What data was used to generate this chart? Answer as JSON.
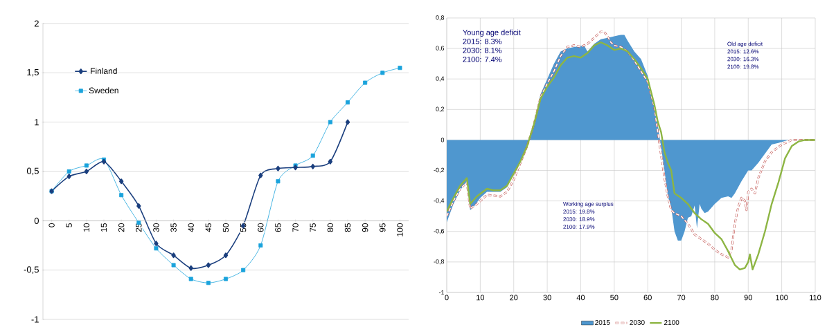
{
  "chart_data": [
    {
      "type": "line",
      "categories": [
        "0",
        "5",
        "10",
        "15",
        "20",
        "25",
        "30",
        "35",
        "40",
        "45",
        "50",
        "55",
        "60",
        "65",
        "70",
        "75",
        "80",
        "85",
        "90",
        "95",
        "100"
      ],
      "series": [
        {
          "name": "Finland",
          "color": "#1b3f7e",
          "marker": "diamond",
          "values": [
            0.3,
            0.45,
            0.5,
            0.6,
            0.4,
            0.15,
            -0.23,
            -0.35,
            -0.48,
            -0.45,
            -0.35,
            -0.05,
            0.46,
            0.53,
            0.54,
            0.55,
            0.6,
            1.0,
            null,
            null,
            null
          ]
        },
        {
          "name": "Sweden",
          "color": "#1aa3dc",
          "marker": "square",
          "values": [
            0.3,
            0.5,
            0.56,
            0.62,
            0.26,
            -0.02,
            -0.28,
            -0.45,
            -0.59,
            -0.63,
            -0.59,
            -0.5,
            -0.25,
            0.4,
            0.56,
            0.66,
            1.0,
            1.2,
            1.4,
            1.5,
            1.55
          ]
        }
      ],
      "ylim": [
        -1,
        2
      ],
      "yticks": [
        -1,
        {
          "value": -0.5,
          "label": "-0,5"
        },
        0,
        {
          "value": 0.5,
          "label": "0,5"
        },
        1,
        {
          "value": 1.5,
          "label": "1,5"
        },
        2
      ],
      "grid": "y",
      "legend": "top left"
    },
    {
      "type": "line",
      "series": [
        {
          "name": "2015",
          "type": "area",
          "color": "#4f97cf",
          "x": [
            0,
            2,
            4,
            6,
            7,
            8,
            10,
            12,
            16,
            18,
            20,
            22,
            24,
            25,
            26,
            28,
            30,
            32,
            34,
            36,
            38,
            41,
            42,
            44,
            46,
            48,
            50,
            52,
            53,
            54,
            56,
            58,
            60,
            62,
            63,
            64,
            65,
            66,
            67,
            68,
            69,
            70,
            71,
            72,
            73,
            74,
            74.7,
            75.5,
            76,
            77,
            78,
            80,
            82,
            84,
            85,
            86,
            88,
            90,
            91,
            93,
            95,
            97,
            99,
            102,
            110
          ],
          "values": [
            -0.54,
            -0.42,
            -0.33,
            -0.27,
            -0.46,
            -0.44,
            -0.38,
            -0.34,
            -0.34,
            -0.31,
            -0.22,
            -0.14,
            -0.03,
            0.02,
            0.1,
            0.3,
            0.4,
            0.5,
            0.58,
            0.6,
            0.61,
            0.62,
            0.58,
            0.63,
            0.66,
            0.67,
            0.68,
            0.69,
            0.69,
            0.65,
            0.58,
            0.53,
            0.42,
            0.22,
            0.1,
            -0.05,
            -0.2,
            -0.37,
            -0.44,
            -0.6,
            -0.66,
            -0.66,
            -0.6,
            -0.51,
            -0.5,
            -0.43,
            -0.58,
            -0.42,
            -0.45,
            -0.48,
            -0.47,
            -0.42,
            -0.38,
            -0.37,
            -0.38,
            -0.35,
            -0.27,
            -0.2,
            -0.2,
            -0.15,
            -0.09,
            -0.03,
            -0.02,
            0,
            0
          ]
        },
        {
          "name": "2030",
          "color": "#c0504d",
          "line_style": "dashed",
          "x": [
            0,
            2,
            4,
            6,
            7,
            9,
            12,
            16,
            18,
            20,
            22,
            24,
            26,
            28,
            30,
            32,
            34,
            36,
            38,
            40,
            42,
            44,
            46,
            47,
            48,
            49,
            50,
            52,
            54,
            56,
            58,
            60,
            62,
            63,
            64,
            65,
            66,
            67,
            68,
            70,
            72,
            74,
            76,
            78,
            80,
            82,
            84,
            85,
            86,
            87,
            88,
            89,
            89.5,
            90,
            91,
            92,
            93,
            95,
            97,
            100,
            103,
            110
          ],
          "values": [
            -0.5,
            -0.4,
            -0.32,
            -0.28,
            -0.45,
            -0.42,
            -0.36,
            -0.37,
            -0.34,
            -0.26,
            -0.15,
            -0.04,
            0.1,
            0.28,
            0.37,
            0.45,
            0.55,
            0.61,
            0.62,
            0.61,
            0.63,
            0.67,
            0.71,
            0.71,
            0.68,
            0.64,
            0.62,
            0.61,
            0.58,
            0.52,
            0.45,
            0.38,
            0.21,
            0.05,
            -0.1,
            -0.25,
            -0.37,
            -0.46,
            -0.48,
            -0.5,
            -0.55,
            -0.62,
            -0.65,
            -0.68,
            -0.72,
            -0.75,
            -0.77,
            -0.72,
            -0.55,
            -0.44,
            -0.38,
            -0.4,
            -0.46,
            -0.34,
            -0.32,
            -0.35,
            -0.25,
            -0.14,
            -0.08,
            -0.03,
            0,
            0
          ]
        },
        {
          "name": "2100",
          "color": "#8db543",
          "line_style": "solid",
          "x": [
            0,
            2,
            4,
            6,
            7,
            9,
            12,
            14,
            16,
            18,
            20,
            22,
            24,
            26,
            28,
            30,
            32,
            34,
            36,
            38,
            40,
            42,
            44,
            46,
            48,
            50,
            52,
            54,
            56,
            58,
            60,
            62,
            63,
            64,
            65,
            66,
            67,
            68,
            70,
            72,
            74,
            76,
            78,
            80,
            82,
            84,
            86,
            87.5,
            89,
            90,
            90.5,
            91.3,
            93,
            95,
            97,
            99,
            101,
            103,
            105,
            107,
            110
          ],
          "values": [
            -0.47,
            -0.38,
            -0.3,
            -0.25,
            -0.42,
            -0.37,
            -0.32,
            -0.33,
            -0.33,
            -0.3,
            -0.22,
            -0.14,
            -0.04,
            0.1,
            0.27,
            0.35,
            0.41,
            0.49,
            0.54,
            0.55,
            0.54,
            0.57,
            0.62,
            0.64,
            0.62,
            0.59,
            0.6,
            0.58,
            0.53,
            0.47,
            0.4,
            0.23,
            0.12,
            0.05,
            -0.08,
            -0.15,
            -0.2,
            -0.35,
            -0.38,
            -0.42,
            -0.48,
            -0.52,
            -0.55,
            -0.61,
            -0.65,
            -0.73,
            -0.82,
            -0.85,
            -0.84,
            -0.8,
            -0.75,
            -0.85,
            -0.75,
            -0.6,
            -0.42,
            -0.28,
            -0.12,
            -0.04,
            -0.01,
            0,
            0
          ]
        }
      ],
      "xlim": [
        0,
        110
      ],
      "xticks": [
        0,
        10,
        20,
        30,
        40,
        50,
        60,
        70,
        80,
        90,
        100,
        110
      ],
      "ylim": [
        -1,
        0.8
      ],
      "yticks": [
        -1,
        {
          "value": -0.8,
          "label": "-0,8"
        },
        {
          "value": -0.6,
          "label": "-0,6"
        },
        {
          "value": -0.4,
          "label": "-0,4"
        },
        {
          "value": -0.2,
          "label": "-0,2"
        },
        0,
        {
          "value": 0.2,
          "label": "0,2"
        },
        {
          "value": 0.4,
          "label": "0,4"
        },
        {
          "value": 0.6,
          "label": "0,6"
        },
        {
          "value": 0.8,
          "label": "0,8"
        }
      ],
      "grid": true,
      "legend": "bottom",
      "annotations": [
        "Young age deficit",
        "2015: 8.3%",
        "2030: 8.1%",
        "2100: 7.4%",
        "Old age deficit",
        "2015: 12.6%",
        "2030: 16.3%",
        "2100: 19.8%",
        "Working age surplus",
        "2015: 19.8%",
        "2030: 18.9%",
        "2100: 17.9%"
      ]
    }
  ]
}
